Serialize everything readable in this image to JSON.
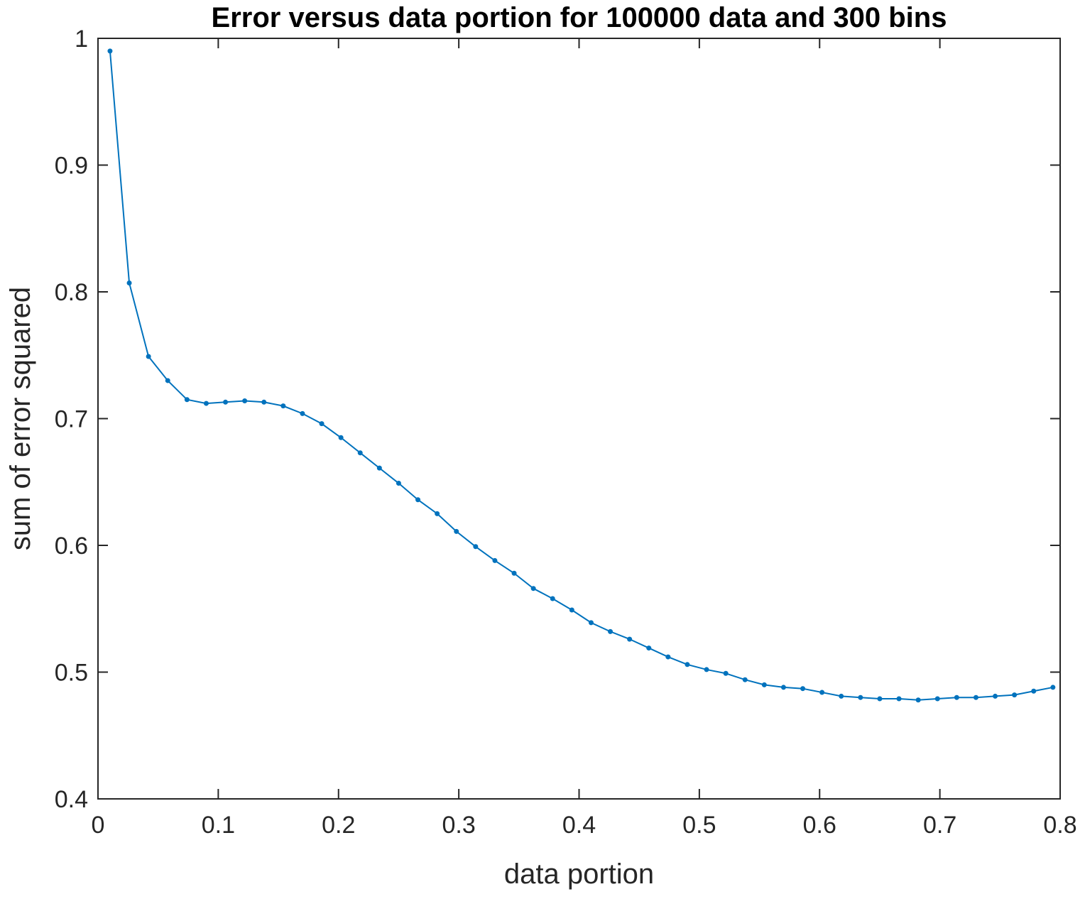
{
  "chart_data": {
    "type": "line",
    "title": "Error versus data portion for 100000 data and 300 bins",
    "xlabel": "data portion",
    "ylabel": "sum of error squared",
    "xlim": [
      0,
      0.8
    ],
    "ylim": [
      0.4,
      1.0
    ],
    "x_ticks": [
      0,
      0.1,
      0.2,
      0.3,
      0.4,
      0.5,
      0.6,
      0.7,
      0.8
    ],
    "x_tick_labels": [
      "0",
      "0.1",
      "0.2",
      "0.3",
      "0.4",
      "0.5",
      "0.6",
      "0.7",
      "0.8"
    ],
    "y_ticks": [
      0.4,
      0.5,
      0.6,
      0.7,
      0.8,
      0.9,
      1.0
    ],
    "y_tick_labels": [
      "0.4",
      "0.5",
      "0.6",
      "0.7",
      "0.8",
      "0.9",
      "1"
    ],
    "grid": false,
    "line_color": "#0072BD",
    "series": [
      {
        "x": [
          0.01,
          0.026,
          0.042,
          0.058,
          0.074,
          0.09,
          0.106,
          0.122,
          0.138,
          0.154,
          0.17,
          0.186,
          0.202,
          0.218,
          0.234,
          0.25,
          0.266,
          0.282,
          0.298,
          0.314,
          0.33,
          0.346,
          0.362,
          0.378,
          0.394,
          0.41,
          0.426,
          0.442,
          0.458,
          0.474,
          0.49,
          0.506,
          0.522,
          0.538,
          0.554,
          0.57,
          0.586,
          0.602,
          0.618,
          0.634,
          0.65,
          0.666,
          0.682,
          0.698,
          0.714,
          0.73,
          0.746,
          0.762,
          0.778,
          0.794
        ],
        "values": [
          0.99,
          0.807,
          0.749,
          0.73,
          0.715,
          0.712,
          0.713,
          0.714,
          0.713,
          0.71,
          0.704,
          0.696,
          0.685,
          0.673,
          0.661,
          0.649,
          0.636,
          0.625,
          0.611,
          0.599,
          0.588,
          0.578,
          0.566,
          0.558,
          0.549,
          0.539,
          0.532,
          0.526,
          0.519,
          0.512,
          0.506,
          0.502,
          0.499,
          0.494,
          0.49,
          0.488,
          0.487,
          0.484,
          0.481,
          0.48,
          0.479,
          0.479,
          0.478,
          0.479,
          0.48,
          0.48,
          0.481,
          0.482,
          0.485,
          0.488
        ]
      }
    ]
  }
}
